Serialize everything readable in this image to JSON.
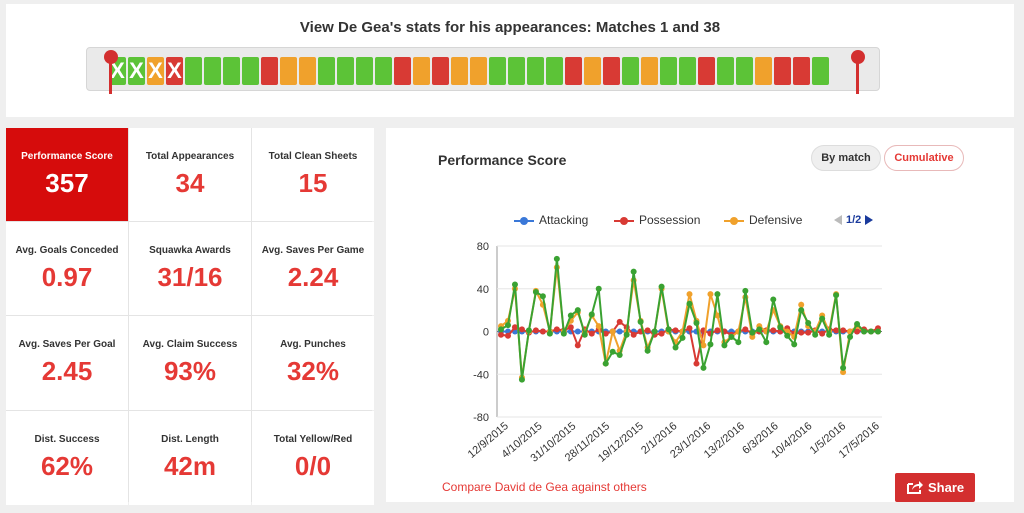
{
  "header": {
    "title": "View De Gea's stats for his appearances: Matches 1 and 38",
    "matches": [
      {
        "color": "#5cc337",
        "excluded": true
      },
      {
        "color": "#5cc337",
        "excluded": true
      },
      {
        "color": "#f0a12c",
        "excluded": true
      },
      {
        "color": "#d83a34",
        "excluded": true
      },
      {
        "color": "#5cc337"
      },
      {
        "color": "#5cc337"
      },
      {
        "color": "#5cc337"
      },
      {
        "color": "#5cc337"
      },
      {
        "color": "#d83a34"
      },
      {
        "color": "#f0a12c"
      },
      {
        "color": "#f0a12c"
      },
      {
        "color": "#5cc337"
      },
      {
        "color": "#5cc337"
      },
      {
        "color": "#5cc337"
      },
      {
        "color": "#5cc337"
      },
      {
        "color": "#d83a34"
      },
      {
        "color": "#f0a12c"
      },
      {
        "color": "#d83a34"
      },
      {
        "color": "#f0a12c"
      },
      {
        "color": "#f0a12c"
      },
      {
        "color": "#5cc337"
      },
      {
        "color": "#5cc337"
      },
      {
        "color": "#5cc337"
      },
      {
        "color": "#5cc337"
      },
      {
        "color": "#d83a34"
      },
      {
        "color": "#f0a12c"
      },
      {
        "color": "#d83a34"
      },
      {
        "color": "#5cc337"
      },
      {
        "color": "#f0a12c"
      },
      {
        "color": "#5cc337"
      },
      {
        "color": "#5cc337"
      },
      {
        "color": "#d83a34"
      },
      {
        "color": "#5cc337"
      },
      {
        "color": "#5cc337"
      },
      {
        "color": "#f0a12c"
      },
      {
        "color": "#d83a34"
      },
      {
        "color": "#d83a34"
      },
      {
        "color": "#5cc337"
      }
    ],
    "excluded_mark": "X"
  },
  "stats": [
    {
      "label": "Performance Score",
      "value": "357",
      "active": true
    },
    {
      "label": "Total Appearances",
      "value": "34"
    },
    {
      "label": "Total Clean Sheets",
      "value": "15"
    },
    {
      "label": "Avg. Goals Conceded",
      "value": "0.97"
    },
    {
      "label": "Squawka Awards",
      "value": "31/16"
    },
    {
      "label": "Avg. Saves Per Game",
      "value": "2.24"
    },
    {
      "label": "Avg. Saves Per Goal",
      "value": "2.45"
    },
    {
      "label": "Avg. Claim Success",
      "value": "93%"
    },
    {
      "label": "Avg. Punches",
      "value": "32%"
    },
    {
      "label": "Dist. Success",
      "value": "62%"
    },
    {
      "label": "Dist. Length",
      "value": "42m"
    },
    {
      "label": "Total Yellow/Red",
      "value": "0/0"
    }
  ],
  "chart_panel": {
    "title": "Performance Score",
    "by_match_label": "By match",
    "cumulative_label": "Cumulative",
    "pager": "1/2",
    "compare_link": "Compare David de Gea against others",
    "share_label": "Share"
  },
  "chart_data": {
    "type": "line",
    "ylim": [
      -80,
      80
    ],
    "yticks": [
      "80",
      "40",
      "0",
      "-40",
      "-80"
    ],
    "ytick_values": [
      80,
      40,
      0,
      -40,
      -80
    ],
    "xtick_labels": [
      "12/9/2015",
      "4/10/2015",
      "31/10/2015",
      "28/11/2015",
      "19/12/2015",
      "2/1/2016",
      "23/1/2016",
      "13/2/2016",
      "6/3/2016",
      "10/4/2016",
      "1/5/2016",
      "17/5/2016"
    ],
    "series": [
      {
        "name": "Attacking",
        "color": "#3a78d8",
        "values": [
          0,
          0,
          0,
          0,
          0,
          0,
          0,
          0,
          0,
          0,
          0,
          0,
          0,
          0,
          0,
          0,
          0,
          0,
          0,
          0,
          0,
          0,
          0,
          0,
          0,
          0,
          0,
          0,
          0,
          0,
          0,
          0,
          0,
          0,
          0,
          0,
          0,
          0,
          0,
          0,
          0,
          0,
          0,
          0,
          0,
          0,
          0,
          0,
          0,
          0,
          0,
          0,
          0,
          0,
          0
        ]
      },
      {
        "name": "Possession",
        "color": "#d83a34",
        "values": [
          -3,
          -4,
          4,
          2,
          -1,
          1,
          0,
          0,
          2,
          1,
          4,
          -13,
          2,
          -2,
          2,
          -2,
          0,
          9,
          4,
          -3,
          0,
          1,
          -3,
          -2,
          2,
          1,
          0,
          3,
          -30,
          1,
          -2,
          1,
          0,
          -3,
          0,
          2,
          -2,
          0,
          1,
          1,
          0,
          3,
          -2,
          -1,
          -1,
          1,
          -2,
          2,
          1,
          1,
          0,
          0,
          2,
          0,
          3
        ]
      },
      {
        "name": "Defensive",
        "color": "#f0a12c",
        "values": [
          5,
          10,
          40,
          -43,
          0,
          38,
          25,
          0,
          60,
          0,
          10,
          18,
          -1,
          15,
          5,
          -30,
          0,
          -18,
          0,
          48,
          10,
          -15,
          0,
          40,
          0,
          -10,
          0,
          35,
          10,
          -13,
          35,
          15,
          -10,
          -5,
          0,
          32,
          -5,
          5,
          0,
          20,
          5,
          0,
          -5,
          25,
          5,
          0,
          15,
          0,
          35,
          -38,
          0,
          5,
          0,
          0,
          0
        ]
      },
      {
        "name": "",
        "color": "#3aa232",
        "values": [
          2,
          6,
          44,
          -45,
          1,
          37,
          33,
          -2,
          68,
          -2,
          15,
          20,
          -3,
          16,
          40,
          -30,
          -19,
          -22,
          -3,
          56,
          9,
          -18,
          0,
          42,
          2,
          -15,
          -6,
          26,
          8,
          -34,
          -12,
          35,
          -13,
          -5,
          -10,
          38,
          -1,
          2,
          -10,
          30,
          4,
          -4,
          -12,
          20,
          8,
          -3,
          12,
          -3,
          34,
          -34,
          -5,
          7,
          0,
          0,
          0
        ]
      }
    ]
  },
  "legend": {
    "attacking": "Attacking",
    "possession": "Possession",
    "defensive": "Defensive"
  },
  "colors": {
    "accent": "#d60c0c",
    "stat_value": "#e53935",
    "win": "#5cc337",
    "draw": "#f0a12c",
    "loss": "#d83a34"
  }
}
